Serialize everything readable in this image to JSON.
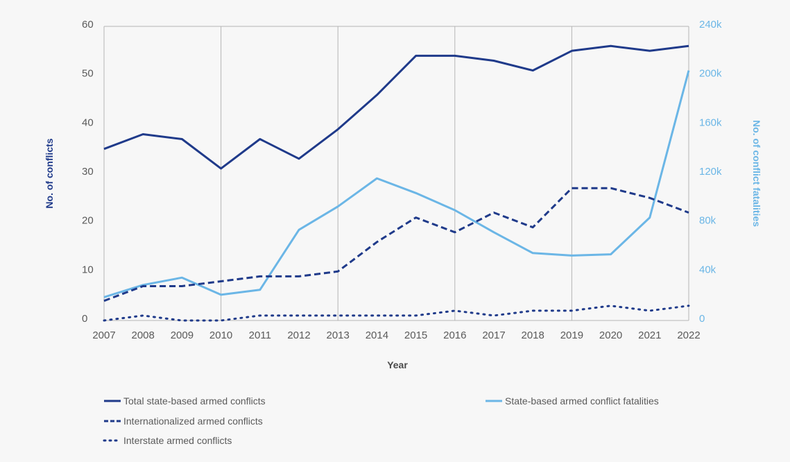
{
  "chart_data": {
    "type": "line",
    "x": [
      2007,
      2008,
      2009,
      2010,
      2011,
      2012,
      2013,
      2014,
      2015,
      2016,
      2017,
      2018,
      2019,
      2020,
      2021,
      2022
    ],
    "xlabel": "Year",
    "ylabel": "No. of conflicts",
    "y2label": "No. of conflict fatalities",
    "ylim": [
      0,
      60
    ],
    "y2lim": [
      0,
      240000
    ],
    "yticks": [
      "0",
      "10",
      "20",
      "30",
      "40",
      "50",
      "60"
    ],
    "y2ticks": [
      "0",
      "40k",
      "80k",
      "120k",
      "160k",
      "200k",
      "240k"
    ],
    "grid": "vertical",
    "legend_position": "bottom",
    "colors": {
      "dark": "#1f3a8a",
      "light": "#6bb6e6",
      "left_axis": "#1f3a8a",
      "right_axis": "#6bb6e6"
    },
    "series": [
      {
        "name": "Total state-based armed conflicts",
        "axis": "left",
        "style": "solid",
        "color": "#1f3a8a",
        "values": [
          35,
          38,
          37,
          31,
          37,
          33,
          39,
          46,
          54,
          54,
          53,
          51,
          55,
          56,
          55,
          56
        ]
      },
      {
        "name": "Internationalized armed conflicts",
        "axis": "left",
        "style": "dashed",
        "color": "#1f3a8a",
        "values": [
          4,
          7,
          7,
          8,
          9,
          9,
          10,
          16,
          21,
          18,
          22,
          19,
          27,
          27,
          25,
          22
        ]
      },
      {
        "name": "Interstate armed conflicts",
        "axis": "left",
        "style": "dotted",
        "color": "#1f3a8a",
        "values": [
          0,
          1,
          0,
          0,
          1,
          1,
          1,
          1,
          1,
          2,
          1,
          2,
          2,
          3,
          2,
          3
        ]
      },
      {
        "name": "State-based armed conflict fatalities",
        "axis": "right",
        "style": "solid",
        "color": "#6bb6e6",
        "values": [
          19000,
          29000,
          35000,
          21000,
          25000,
          74000,
          93000,
          116000,
          104000,
          90000,
          72000,
          55000,
          53000,
          54000,
          84000,
          204000
        ]
      }
    ]
  }
}
